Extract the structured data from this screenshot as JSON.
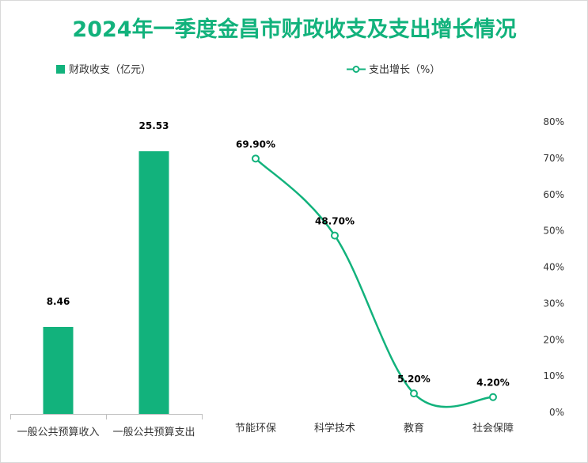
{
  "title": "2024年一季度金昌市财政收支及支出增长情况",
  "colors": {
    "accent": "#12b27c"
  },
  "chart_data": [
    {
      "type": "bar",
      "legend": "财政收支（亿元）",
      "categories": [
        "一般公共预算收入",
        "一般公共预算支出"
      ],
      "values": [
        8.46,
        25.53
      ],
      "value_labels": [
        "8.46",
        "25.53"
      ],
      "ylim": [
        0,
        30
      ]
    },
    {
      "type": "line",
      "legend": "支出增长（%）",
      "categories": [
        "节能环保",
        "科学技术",
        "教育",
        "社会保障"
      ],
      "values": [
        69.9,
        48.7,
        5.2,
        4.2
      ],
      "value_labels": [
        "69.90%",
        "48.70%",
        "5.20%",
        "4.20%"
      ],
      "ylim": [
        0,
        80
      ],
      "yticks": [
        "0%",
        "10%",
        "20%",
        "30%",
        "40%",
        "50%",
        "60%",
        "70%",
        "80%"
      ]
    }
  ]
}
